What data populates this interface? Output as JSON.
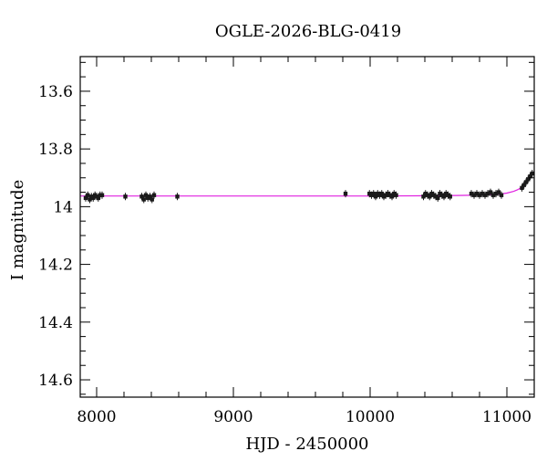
{
  "chart_data": {
    "type": "scatter",
    "title": "OGLE-2026-BLG-0419",
    "xlabel": "HJD - 2450000",
    "ylabel": "I magnitude",
    "xlim": [
      7880,
      11200
    ],
    "ylim": [
      14.66,
      13.48
    ],
    "y_inverted": true,
    "x_ticks": [
      8000,
      9000,
      10000,
      11000
    ],
    "y_ticks": [
      13.6,
      13.8,
      14.0,
      14.2,
      14.4,
      14.6
    ],
    "x_tick_labels": [
      "8000",
      "9000",
      "10000",
      "11000"
    ],
    "y_tick_labels": [
      "13.6",
      "13.8",
      "14",
      "14.2",
      "14.4",
      "14.6"
    ],
    "grid": false,
    "colors": {
      "points": "#1a1a1a",
      "model": "#e020e0",
      "frame": "#000000"
    },
    "series": [
      {
        "kind": "points",
        "x": [
          7920,
          7935,
          7950,
          7962,
          7975,
          7988,
          8000,
          8012,
          8025,
          8040,
          8210,
          8330,
          8345,
          8360,
          8375,
          8390,
          8405,
          8420,
          8590,
          9820,
          9995,
          10010,
          10025,
          10040,
          10055,
          10070,
          10085,
          10100,
          10115,
          10130,
          10145,
          10160,
          10175,
          10190,
          10390,
          10405,
          10420,
          10435,
          10450,
          10465,
          10480,
          10495,
          10510,
          10525,
          10540,
          10555,
          10570,
          10585,
          10740,
          10760,
          10780,
          10800,
          10820,
          10840,
          10860,
          10880,
          10900,
          10920,
          10940,
          10960,
          11110,
          11125,
          11140,
          11155,
          11170,
          11185
        ],
        "y": [
          13.97,
          13.96,
          13.975,
          13.965,
          13.97,
          13.96,
          13.965,
          13.97,
          13.96,
          13.96,
          13.965,
          13.965,
          13.975,
          13.96,
          13.97,
          13.965,
          13.975,
          13.96,
          13.965,
          13.955,
          13.955,
          13.96,
          13.955,
          13.965,
          13.955,
          13.96,
          13.955,
          13.965,
          13.96,
          13.955,
          13.96,
          13.965,
          13.955,
          13.96,
          13.965,
          13.955,
          13.96,
          13.965,
          13.955,
          13.96,
          13.965,
          13.97,
          13.955,
          13.96,
          13.965,
          13.955,
          13.96,
          13.965,
          13.955,
          13.96,
          13.955,
          13.96,
          13.955,
          13.96,
          13.955,
          13.95,
          13.96,
          13.955,
          13.95,
          13.96,
          13.935,
          13.925,
          13.915,
          13.905,
          13.895,
          13.885
        ]
      },
      {
        "kind": "model-line",
        "x": [
          7880,
          8500,
          9000,
          9500,
          10000,
          10500,
          10800,
          10900,
          10950,
          11000,
          11050,
          11080,
          11110,
          11140,
          11170,
          11200
        ],
        "y": [
          13.963,
          13.963,
          13.963,
          13.963,
          13.963,
          13.962,
          13.96,
          13.958,
          13.956,
          13.953,
          13.947,
          13.941,
          13.932,
          13.918,
          13.9,
          13.878
        ]
      }
    ]
  }
}
